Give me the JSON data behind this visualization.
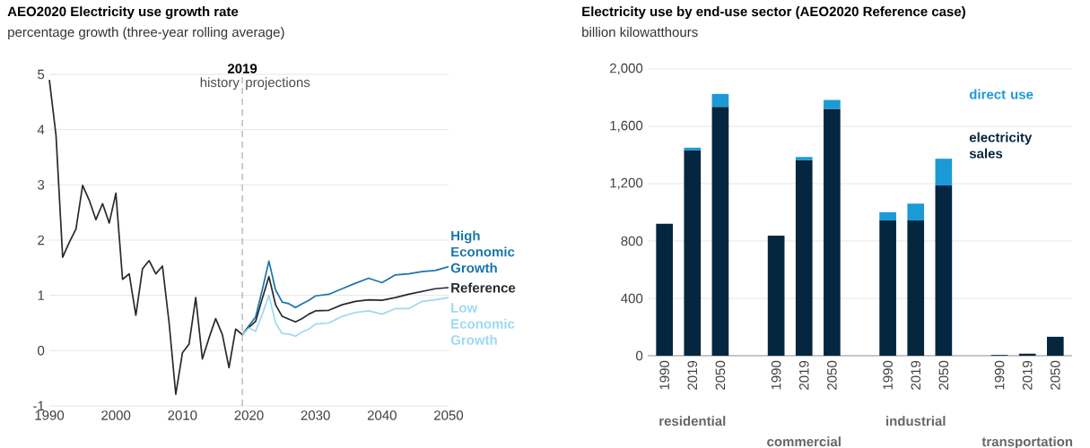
{
  "chart_data": [
    {
      "type": "line",
      "title": "AEO2020 Electricity use growth rate",
      "subtitle": "percentage growth (three-year rolling average)",
      "xlim": [
        1990,
        2050
      ],
      "ylim": [
        -1,
        5
      ],
      "xticks": [
        1990,
        2000,
        2010,
        2020,
        2030,
        2040,
        2050
      ],
      "yticks": [
        -1,
        0,
        1,
        2,
        3,
        4,
        5
      ],
      "grid": "y",
      "line_style": "solid",
      "ref_lines": [
        {
          "axis": "x",
          "value": 2019,
          "label": "2019",
          "line_style": "dashed",
          "color": "#999999"
        }
      ],
      "annotations": [
        "history",
        "projections"
      ],
      "series": [
        {
          "name": "High Economic Growth",
          "color": "#1b75a8",
          "x": [
            2019,
            2020,
            2021,
            2022,
            2023,
            2024,
            2025,
            2026,
            2027,
            2028,
            2029,
            2030,
            2032,
            2034,
            2036,
            2038,
            2040,
            2042,
            2044,
            2046,
            2048,
            2050
          ],
          "values": [
            0.29,
            0.45,
            0.61,
            1.1,
            1.62,
            1.1,
            0.88,
            0.85,
            0.78,
            0.85,
            0.91,
            0.99,
            1.02,
            1.12,
            1.22,
            1.31,
            1.23,
            1.37,
            1.39,
            1.43,
            1.45,
            1.52
          ]
        },
        {
          "name": "Reference",
          "color": "#262b2f",
          "x": [
            1990,
            1991,
            1992,
            1993,
            1994,
            1995,
            1996,
            1997,
            1998,
            1999,
            2000,
            2001,
            2002,
            2003,
            2004,
            2005,
            2006,
            2007,
            2008,
            2009,
            2010,
            2011,
            2012,
            2013,
            2014,
            2015,
            2016,
            2017,
            2018,
            2019,
            2020,
            2021,
            2022,
            2023,
            2024,
            2025,
            2026,
            2027,
            2028,
            2029,
            2030,
            2032,
            2034,
            2036,
            2038,
            2040,
            2042,
            2044,
            2046,
            2048,
            2050
          ],
          "values": [
            4.9,
            3.9,
            1.69,
            1.96,
            2.2,
            2.99,
            2.72,
            2.37,
            2.66,
            2.31,
            2.85,
            1.29,
            1.39,
            0.64,
            1.48,
            1.63,
            1.39,
            1.53,
            0.5,
            -0.79,
            -0.04,
            0.12,
            0.96,
            -0.15,
            0.23,
            0.58,
            0.29,
            -0.31,
            0.39,
            0.29,
            0.42,
            0.53,
            0.94,
            1.34,
            0.83,
            0.62,
            0.57,
            0.52,
            0.58,
            0.66,
            0.72,
            0.73,
            0.83,
            0.89,
            0.92,
            0.91,
            0.96,
            1.02,
            1.07,
            1.12,
            1.14
          ]
        },
        {
          "name": "Low Economic Growth",
          "color": "#9fd8f3",
          "x": [
            2019,
            2020,
            2021,
            2022,
            2023,
            2024,
            2025,
            2026,
            2027,
            2028,
            2029,
            2030,
            2032,
            2034,
            2036,
            2038,
            2040,
            2042,
            2044,
            2046,
            2048,
            2050
          ],
          "values": [
            0.29,
            0.41,
            0.35,
            0.66,
            1.0,
            0.5,
            0.31,
            0.3,
            0.26,
            0.34,
            0.39,
            0.48,
            0.5,
            0.62,
            0.69,
            0.72,
            0.66,
            0.76,
            0.76,
            0.89,
            0.92,
            0.96
          ]
        }
      ]
    },
    {
      "type": "bar",
      "stacked": true,
      "title": "Electricity use by end-use sector (AEO2020 Reference case)",
      "subtitle": "billion kilowatthours",
      "categories": [
        "1990",
        "2019",
        "2050",
        null,
        "1990",
        "2019",
        "2050",
        null,
        "1990",
        "2019",
        "2050",
        null,
        "1990",
        "2019",
        "2050"
      ],
      "ylim": [
        0,
        2000
      ],
      "yticks": [
        0,
        400,
        800,
        {
          "value": 1200,
          "label": "1,200"
        },
        {
          "value": 1600,
          "label": "1,600"
        },
        {
          "value": 2000,
          "label": "2,000"
        }
      ],
      "grid": "y",
      "legend": "top right",
      "annotations": [
        "residential",
        "commercial",
        "industrial",
        "transportation"
      ],
      "series": [
        {
          "name": "electricity sales",
          "color": "#05263f",
          "values": [
            920,
            1432,
            1736,
            null,
            837,
            1363,
            1722,
            null,
            943,
            943,
            1187,
            null,
            5,
            14,
            132
          ]
        },
        {
          "name": "direct use",
          "color": "#1b9ad6",
          "values": [
            null,
            19,
            90,
            null,
            null,
            23,
            62,
            null,
            58,
            118,
            187,
            null,
            null,
            null,
            null
          ]
        }
      ]
    }
  ]
}
